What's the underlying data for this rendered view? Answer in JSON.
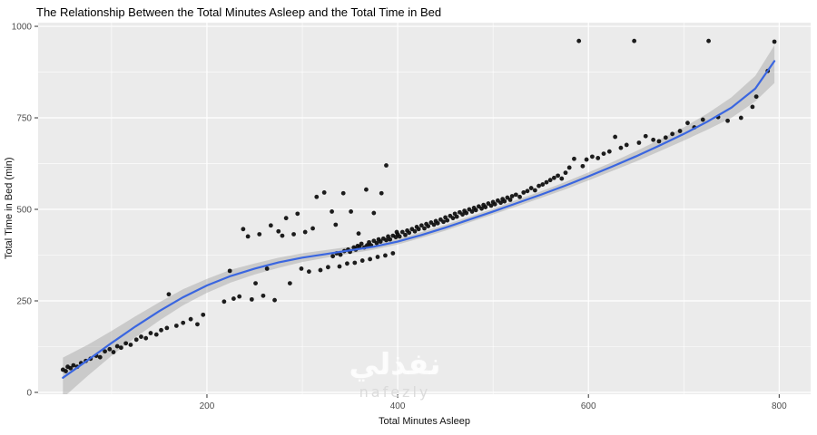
{
  "watermark": {
    "line1": "نفذلي",
    "line2": "nafezly"
  },
  "chart_data": {
    "type": "scatter",
    "title": "The Relationship Between the Total Minutes Asleep and the Total Time in Bed",
    "xlabel": "Total Minutes Asleep",
    "ylabel": "Total Time in Bed (min)",
    "xlim": [
      23,
      833
    ],
    "ylim": [
      -5,
      1010
    ],
    "x_ticks": [
      200,
      400,
      600,
      800
    ],
    "x_minor_ticks": [
      100,
      300,
      500,
      700
    ],
    "y_ticks": [
      0,
      250,
      500,
      750,
      1000
    ],
    "y_minor_ticks": [
      125,
      375,
      625,
      875
    ],
    "grid": true,
    "legend": false,
    "panel_color": "#ebebeb",
    "major_grid_color": "#ffffff",
    "minor_grid_color": "#f5f5f5",
    "point_color": "#0a0a0a",
    "smooth_color": "#3a66e0",
    "ribbon_color": "#999999",
    "tick_color": "#333333",
    "points": [
      [
        49,
        62
      ],
      [
        52,
        58
      ],
      [
        54,
        70
      ],
      [
        57,
        66
      ],
      [
        60,
        74
      ],
      [
        64,
        70
      ],
      [
        68,
        80
      ],
      [
        73,
        86
      ],
      [
        78,
        92
      ],
      [
        84,
        100
      ],
      [
        88,
        96
      ],
      [
        93,
        112
      ],
      [
        98,
        118
      ],
      [
        102,
        110
      ],
      [
        106,
        126
      ],
      [
        110,
        122
      ],
      [
        115,
        134
      ],
      [
        120,
        130
      ],
      [
        126,
        144
      ],
      [
        131,
        152
      ],
      [
        136,
        148
      ],
      [
        141,
        162
      ],
      [
        147,
        158
      ],
      [
        152,
        170
      ],
      [
        158,
        176
      ],
      [
        160,
        268
      ],
      [
        168,
        182
      ],
      [
        175,
        190
      ],
      [
        183,
        200
      ],
      [
        190,
        186
      ],
      [
        196,
        212
      ],
      [
        218,
        248
      ],
      [
        224,
        332
      ],
      [
        228,
        256
      ],
      [
        234,
        262
      ],
      [
        238,
        446
      ],
      [
        243,
        426
      ],
      [
        247,
        254
      ],
      [
        251,
        298
      ],
      [
        255,
        432
      ],
      [
        259,
        264
      ],
      [
        263,
        338
      ],
      [
        267,
        456
      ],
      [
        271,
        252
      ],
      [
        275,
        440
      ],
      [
        279,
        428
      ],
      [
        283,
        476
      ],
      [
        287,
        298
      ],
      [
        291,
        432
      ],
      [
        295,
        488
      ],
      [
        299,
        338
      ],
      [
        303,
        438
      ],
      [
        307,
        330
      ],
      [
        311,
        448
      ],
      [
        315,
        534
      ],
      [
        319,
        334
      ],
      [
        323,
        546
      ],
      [
        327,
        342
      ],
      [
        331,
        494
      ],
      [
        335,
        458
      ],
      [
        339,
        344
      ],
      [
        343,
        544
      ],
      [
        347,
        352
      ],
      [
        351,
        494
      ],
      [
        355,
        354
      ],
      [
        359,
        434
      ],
      [
        363,
        360
      ],
      [
        367,
        554
      ],
      [
        371,
        364
      ],
      [
        375,
        490
      ],
      [
        379,
        370
      ],
      [
        383,
        544
      ],
      [
        387,
        374
      ],
      [
        388,
        620
      ],
      [
        395,
        380
      ],
      [
        399,
        438
      ],
      [
        332,
        372
      ],
      [
        336,
        380
      ],
      [
        340,
        376
      ],
      [
        344,
        386
      ],
      [
        348,
        390
      ],
      [
        350,
        384
      ],
      [
        354,
        396
      ],
      [
        356,
        390
      ],
      [
        358,
        400
      ],
      [
        360,
        398
      ],
      [
        362,
        406
      ],
      [
        365,
        396
      ],
      [
        368,
        402
      ],
      [
        370,
        410
      ],
      [
        372,
        402
      ],
      [
        375,
        414
      ],
      [
        378,
        408
      ],
      [
        380,
        418
      ],
      [
        382,
        412
      ],
      [
        385,
        420
      ],
      [
        388,
        416
      ],
      [
        390,
        426
      ],
      [
        392,
        418
      ],
      [
        395,
        428
      ],
      [
        398,
        424
      ],
      [
        400,
        432
      ],
      [
        402,
        426
      ],
      [
        405,
        438
      ],
      [
        408,
        430
      ],
      [
        410,
        442
      ],
      [
        412,
        436
      ],
      [
        415,
        446
      ],
      [
        418,
        440
      ],
      [
        420,
        452
      ],
      [
        422,
        446
      ],
      [
        425,
        456
      ],
      [
        428,
        448
      ],
      [
        430,
        460
      ],
      [
        432,
        454
      ],
      [
        435,
        464
      ],
      [
        438,
        458
      ],
      [
        440,
        468
      ],
      [
        442,
        462
      ],
      [
        445,
        472
      ],
      [
        448,
        466
      ],
      [
        450,
        478
      ],
      [
        452,
        470
      ],
      [
        455,
        482
      ],
      [
        458,
        476
      ],
      [
        460,
        488
      ],
      [
        462,
        480
      ],
      [
        465,
        492
      ],
      [
        468,
        486
      ],
      [
        470,
        496
      ],
      [
        472,
        490
      ],
      [
        475,
        500
      ],
      [
        478,
        494
      ],
      [
        480,
        504
      ],
      [
        482,
        498
      ],
      [
        485,
        508
      ],
      [
        488,
        502
      ],
      [
        490,
        512
      ],
      [
        492,
        506
      ],
      [
        495,
        516
      ],
      [
        498,
        510
      ],
      [
        500,
        520
      ],
      [
        502,
        514
      ],
      [
        505,
        524
      ],
      [
        508,
        518
      ],
      [
        510,
        528
      ],
      [
        512,
        522
      ],
      [
        515,
        532
      ],
      [
        518,
        526
      ],
      [
        520,
        536
      ],
      [
        524,
        540
      ],
      [
        528,
        534
      ],
      [
        532,
        546
      ],
      [
        536,
        550
      ],
      [
        540,
        558
      ],
      [
        544,
        552
      ],
      [
        548,
        564
      ],
      [
        552,
        568
      ],
      [
        556,
        574
      ],
      [
        560,
        580
      ],
      [
        564,
        586
      ],
      [
        568,
        592
      ],
      [
        572,
        584
      ],
      [
        576,
        600
      ],
      [
        580,
        614
      ],
      [
        585,
        638
      ],
      [
        590,
        960
      ],
      [
        594,
        618
      ],
      [
        598,
        636
      ],
      [
        604,
        644
      ],
      [
        610,
        640
      ],
      [
        616,
        652
      ],
      [
        622,
        658
      ],
      [
        628,
        698
      ],
      [
        634,
        668
      ],
      [
        640,
        676
      ],
      [
        648,
        960
      ],
      [
        653,
        682
      ],
      [
        660,
        700
      ],
      [
        668,
        690
      ],
      [
        674,
        686
      ],
      [
        681,
        696
      ],
      [
        688,
        706
      ],
      [
        696,
        714
      ],
      [
        704,
        736
      ],
      [
        711,
        724
      ],
      [
        720,
        745
      ],
      [
        726,
        960
      ],
      [
        736,
        752
      ],
      [
        746,
        742
      ],
      [
        760,
        750
      ],
      [
        772,
        780
      ],
      [
        776,
        808
      ],
      [
        788,
        878
      ],
      [
        795,
        958
      ]
    ],
    "smooth_line": [
      [
        49,
        40
      ],
      [
        75,
        88
      ],
      [
        100,
        135
      ],
      [
        125,
        180
      ],
      [
        150,
        222
      ],
      [
        175,
        260
      ],
      [
        200,
        292
      ],
      [
        225,
        318
      ],
      [
        250,
        338
      ],
      [
        275,
        355
      ],
      [
        300,
        368
      ],
      [
        325,
        378
      ],
      [
        350,
        388
      ],
      [
        375,
        398
      ],
      [
        400,
        412
      ],
      [
        425,
        430
      ],
      [
        450,
        450
      ],
      [
        475,
        472
      ],
      [
        500,
        494
      ],
      [
        525,
        517
      ],
      [
        550,
        540
      ],
      [
        575,
        564
      ],
      [
        600,
        590
      ],
      [
        625,
        617
      ],
      [
        650,
        645
      ],
      [
        675,
        675
      ],
      [
        700,
        706
      ],
      [
        725,
        740
      ],
      [
        750,
        778
      ],
      [
        775,
        830
      ],
      [
        795,
        905
      ]
    ],
    "ribbon": [
      [
        49,
        -15,
        95
      ],
      [
        75,
        45,
        130
      ],
      [
        100,
        100,
        168
      ],
      [
        125,
        150,
        208
      ],
      [
        150,
        196,
        246
      ],
      [
        175,
        238,
        282
      ],
      [
        200,
        272,
        310
      ],
      [
        225,
        300,
        335
      ],
      [
        250,
        322,
        352
      ],
      [
        275,
        340,
        368
      ],
      [
        300,
        356,
        380
      ],
      [
        325,
        368,
        389
      ],
      [
        350,
        379,
        398
      ],
      [
        375,
        390,
        407
      ],
      [
        400,
        404,
        420
      ],
      [
        425,
        422,
        438
      ],
      [
        450,
        442,
        458
      ],
      [
        475,
        464,
        480
      ],
      [
        500,
        486,
        502
      ],
      [
        525,
        508,
        526
      ],
      [
        550,
        531,
        549
      ],
      [
        575,
        554,
        574
      ],
      [
        600,
        579,
        601
      ],
      [
        625,
        605,
        629
      ],
      [
        650,
        631,
        659
      ],
      [
        675,
        659,
        691
      ],
      [
        700,
        688,
        724
      ],
      [
        725,
        718,
        762
      ],
      [
        750,
        750,
        806
      ],
      [
        775,
        795,
        865
      ],
      [
        795,
        845,
        948
      ]
    ]
  }
}
